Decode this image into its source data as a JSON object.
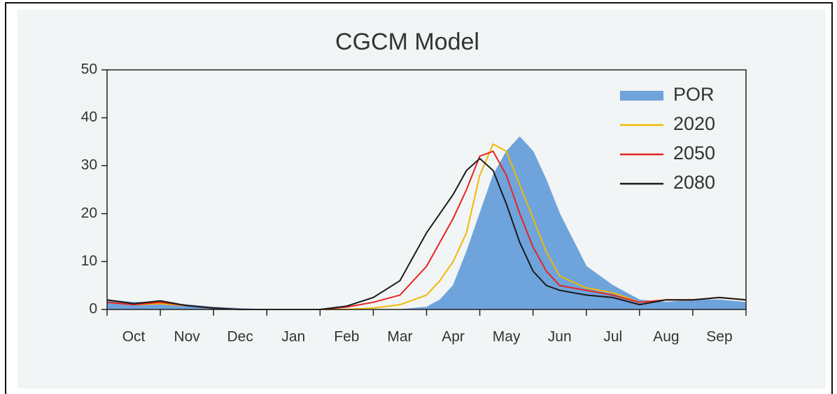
{
  "chart_data": {
    "type": "line",
    "title": "CGCM Model",
    "categories": [
      "Oct",
      "Nov",
      "Dec",
      "Jan",
      "Feb",
      "Mar",
      "Apr",
      "May",
      "Jun",
      "Jul",
      "Aug",
      "Sep"
    ],
    "x": [
      0,
      0.5,
      1,
      1.5,
      2,
      2.5,
      3,
      3.5,
      4,
      4.5,
      5,
      5.5,
      6,
      6.25,
      6.5,
      6.75,
      7,
      7.25,
      7.5,
      7.75,
      8,
      8.25,
      8.5,
      9,
      9.5,
      10,
      10.5,
      11,
      11.5,
      12
    ],
    "xlim": [
      0,
      12
    ],
    "xticks": [
      0,
      1,
      2,
      3,
      4,
      5,
      6,
      7,
      8,
      9,
      10,
      11,
      12
    ],
    "ylim": [
      0,
      50
    ],
    "yticks": [
      0,
      10,
      20,
      30,
      40,
      50
    ],
    "legend": "upper right",
    "series": [
      {
        "name": "POR",
        "color": "#6fa3dc",
        "fill": true,
        "values": [
          2,
          1.5,
          1.5,
          1,
          0.5,
          0.2,
          0,
          0,
          0,
          0,
          0,
          0,
          0.5,
          2,
          5,
          12,
          20,
          28,
          33,
          36,
          33,
          27,
          20,
          9,
          5,
          2,
          1.5,
          2,
          2,
          1.5
        ]
      },
      {
        "name": "2020",
        "color": "#f2b800",
        "values": [
          1.5,
          1,
          1.2,
          0.8,
          0.3,
          0,
          0,
          0,
          0,
          0,
          0.3,
          1,
          3,
          6,
          10,
          16,
          28,
          34.5,
          33,
          26,
          19,
          12,
          7,
          4.5,
          3.5,
          1.5,
          2,
          2,
          2.5,
          2
        ]
      },
      {
        "name": "2050",
        "color": "#e8231e",
        "values": [
          1.5,
          1,
          1.5,
          0.8,
          0.3,
          0,
          0,
          0,
          0,
          0.5,
          1.5,
          3,
          9,
          14,
          19,
          25,
          32,
          33,
          28,
          20,
          13,
          8,
          5,
          4,
          3,
          1.5,
          2,
          2,
          2.5,
          2
        ]
      },
      {
        "name": "2080",
        "color": "#1a1a1a",
        "values": [
          2,
          1.2,
          1.8,
          0.8,
          0.3,
          0,
          0,
          0,
          0,
          0.7,
          2.5,
          6,
          16,
          20,
          24,
          29,
          31.5,
          29,
          22,
          14,
          8,
          5,
          4,
          3,
          2.5,
          1,
          2,
          2,
          2.5,
          2
        ]
      }
    ]
  }
}
